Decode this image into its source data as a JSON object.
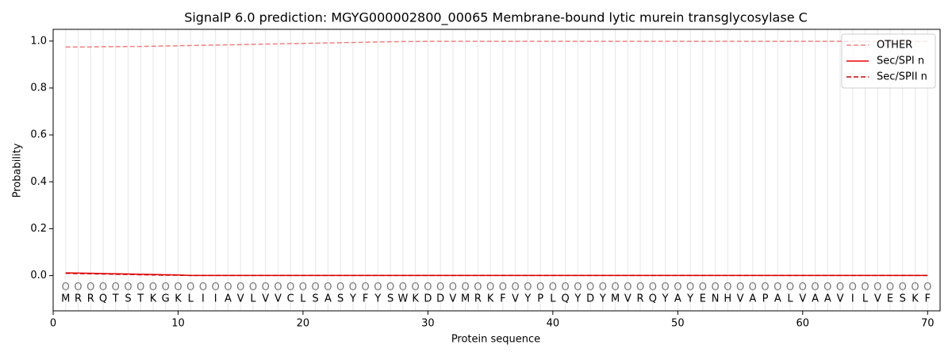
{
  "chart_data": {
    "type": "line",
    "title": "SignalP 6.0 prediction: MGYG000002800_00065 Membrane-bound lytic murein transglycosylase C",
    "x_label": "Protein sequence",
    "y_label": "Probability",
    "x": [
      1,
      2,
      3,
      4,
      5,
      6,
      7,
      8,
      9,
      10,
      11,
      12,
      13,
      14,
      15,
      16,
      17,
      18,
      19,
      20,
      21,
      22,
      23,
      24,
      25,
      26,
      27,
      28,
      29,
      30,
      31,
      32,
      33,
      34,
      35,
      36,
      37,
      38,
      39,
      40,
      41,
      42,
      43,
      44,
      45,
      46,
      47,
      48,
      49,
      50,
      51,
      52,
      53,
      54,
      55,
      56,
      57,
      58,
      59,
      60,
      61,
      62,
      63,
      64,
      65,
      66,
      67,
      68,
      69,
      70
    ],
    "sequence": [
      "M",
      "R",
      "R",
      "Q",
      "T",
      "S",
      "T",
      "K",
      "G",
      "K",
      "L",
      "I",
      "I",
      "A",
      "V",
      "L",
      "V",
      "V",
      "C",
      "L",
      "S",
      "A",
      "S",
      "Y",
      "F",
      "Y",
      "S",
      "W",
      "K",
      "D",
      "D",
      "V",
      "M",
      "R",
      "K",
      "F",
      "V",
      "Y",
      "P",
      "L",
      "Q",
      "Y",
      "D",
      "Y",
      "M",
      "V",
      "R",
      "Q",
      "Y",
      "A",
      "Y",
      "E",
      "N",
      "H",
      "V",
      "A",
      "P",
      "A",
      "L",
      "V",
      "A",
      "A",
      "V",
      "I",
      "L",
      "V",
      "E",
      "S",
      "K",
      "F"
    ],
    "labels": [
      "O",
      "O",
      "O",
      "O",
      "O",
      "O",
      "O",
      "O",
      "O",
      "O",
      "O",
      "O",
      "O",
      "O",
      "O",
      "O",
      "O",
      "O",
      "O",
      "O",
      "O",
      "O",
      "O",
      "O",
      "O",
      "O",
      "O",
      "O",
      "O",
      "O",
      "O",
      "O",
      "O",
      "O",
      "O",
      "O",
      "O",
      "O",
      "O",
      "O",
      "O",
      "O",
      "O",
      "O",
      "O",
      "O",
      "O",
      "O",
      "O",
      "O",
      "O",
      "O",
      "O",
      "O",
      "O",
      "O",
      "O",
      "O",
      "O",
      "O",
      "O",
      "O",
      "O",
      "O",
      "O",
      "O",
      "O",
      "O",
      "O",
      "O"
    ],
    "series": [
      {
        "name": "OTHER",
        "color": "#f08080",
        "linestyle": "dashed",
        "values": [
          0.975,
          0.975,
          0.975,
          0.976,
          0.976,
          0.977,
          0.977,
          0.978,
          0.979,
          0.98,
          0.981,
          0.982,
          0.983,
          0.984,
          0.985,
          0.986,
          0.987,
          0.988,
          0.989,
          0.99,
          0.991,
          0.992,
          0.993,
          0.994,
          0.995,
          0.996,
          0.997,
          0.998,
          0.998,
          0.999,
          0.999,
          0.999,
          0.999,
          0.999,
          0.999,
          0.999,
          0.999,
          0.999,
          0.999,
          0.999,
          0.999,
          0.999,
          0.999,
          0.999,
          0.999,
          0.999,
          0.999,
          0.999,
          0.999,
          0.999,
          0.999,
          0.999,
          0.999,
          0.999,
          0.999,
          0.999,
          0.999,
          0.999,
          0.999,
          0.999,
          0.999,
          0.999,
          0.999,
          0.999,
          0.999,
          0.998,
          0.998,
          0.998,
          0.998,
          0.998
        ]
      },
      {
        "name": "Sec/SPI n",
        "color": "#ee0000",
        "linestyle": "solid",
        "values": [
          0.012,
          0.011,
          0.01,
          0.009,
          0.008,
          0.007,
          0.006,
          0.005,
          0.004,
          0.003,
          0.001,
          0.001,
          0.001,
          0.001,
          0.001,
          0.001,
          0.001,
          0.001,
          0.001,
          0.001,
          0.001,
          0.001,
          0.001,
          0.001,
          0.001,
          0.001,
          0.001,
          0.001,
          0.001,
          0.001,
          0.001,
          0.001,
          0.001,
          0.001,
          0.001,
          0.001,
          0.001,
          0.001,
          0.001,
          0.001,
          0.001,
          0.001,
          0.001,
          0.001,
          0.001,
          0.001,
          0.001,
          0.001,
          0.001,
          0.001,
          0.001,
          0.001,
          0.001,
          0.001,
          0.001,
          0.001,
          0.001,
          0.001,
          0.001,
          0.001,
          0.001,
          0.001,
          0.001,
          0.001,
          0.001,
          0.001,
          0.001,
          0.001,
          0.001,
          0.001
        ]
      },
      {
        "name": "Sec/SPII n",
        "color": "#cc0000",
        "linestyle": "dashed",
        "values": [
          0.01,
          0.009,
          0.008,
          0.007,
          0.006,
          0.005,
          0.004,
          0.003,
          0.002,
          0.002,
          0.001,
          0.001,
          0.001,
          0.001,
          0.001,
          0.001,
          0.001,
          0.001,
          0.001,
          0.001,
          0.001,
          0.001,
          0.001,
          0.001,
          0.001,
          0.001,
          0.001,
          0.001,
          0.001,
          0.001,
          0.001,
          0.001,
          0.001,
          0.001,
          0.001,
          0.001,
          0.001,
          0.001,
          0.001,
          0.001,
          0.001,
          0.001,
          0.001,
          0.001,
          0.001,
          0.001,
          0.001,
          0.001,
          0.001,
          0.001,
          0.001,
          0.001,
          0.001,
          0.001,
          0.001,
          0.001,
          0.001,
          0.001,
          0.001,
          0.001,
          0.001,
          0.001,
          0.001,
          0.001,
          0.001,
          0.001,
          0.001,
          0.001,
          0.001,
          0.001
        ]
      }
    ],
    "xlim": [
      0,
      71
    ],
    "xticks": [
      0,
      10,
      20,
      30,
      40,
      50,
      60,
      70
    ],
    "ylim": [
      -0.15,
      1.05
    ],
    "yticks": [
      {
        "value": 0,
        "label": "0.0"
      },
      {
        "value": 0.2,
        "label": "0.2"
      },
      {
        "value": 0.4,
        "label": "0.4"
      },
      {
        "value": 0.6,
        "label": "0.6"
      },
      {
        "value": 0.8,
        "label": "0.8"
      },
      {
        "value": 1,
        "label": "1.0"
      }
    ],
    "sequence_y": -0.1,
    "labels_y": -0.05,
    "legend": "upper right"
  }
}
